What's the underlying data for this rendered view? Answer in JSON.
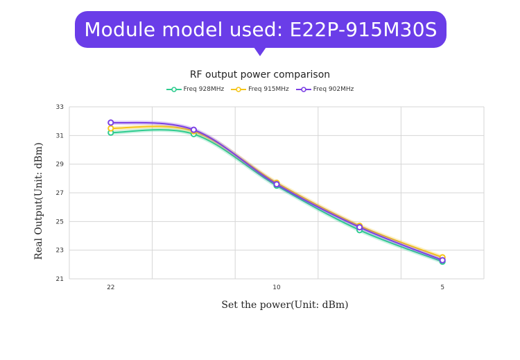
{
  "banner": {
    "text": "Module model used: E22P-915M30S"
  },
  "chart_data": {
    "type": "line",
    "title": "RF output power comparison",
    "xlabel": "Set the power(Unit: dBm)",
    "ylabel": "Real Output(Unit: dBm)",
    "categories": [
      "22",
      "",
      "10",
      "",
      "5"
    ],
    "x_tick_labels": [
      "22",
      "10",
      "5"
    ],
    "y_ticks": [
      21,
      23,
      25,
      27,
      29,
      31,
      33
    ],
    "ylim": [
      21,
      33
    ],
    "grid": true,
    "legend_position": "top-center",
    "series": [
      {
        "name": "Freq 928MHz",
        "color": "#2ecc8f",
        "values": [
          31.2,
          31.1,
          27.5,
          24.4,
          22.2
        ]
      },
      {
        "name": "Freq 915MHz",
        "color": "#f5c518",
        "values": [
          31.5,
          31.3,
          27.7,
          24.7,
          22.5
        ]
      },
      {
        "name": "Freq 902MHz",
        "color": "#7b3fe4",
        "values": [
          31.9,
          31.4,
          27.6,
          24.6,
          22.3
        ]
      }
    ]
  }
}
